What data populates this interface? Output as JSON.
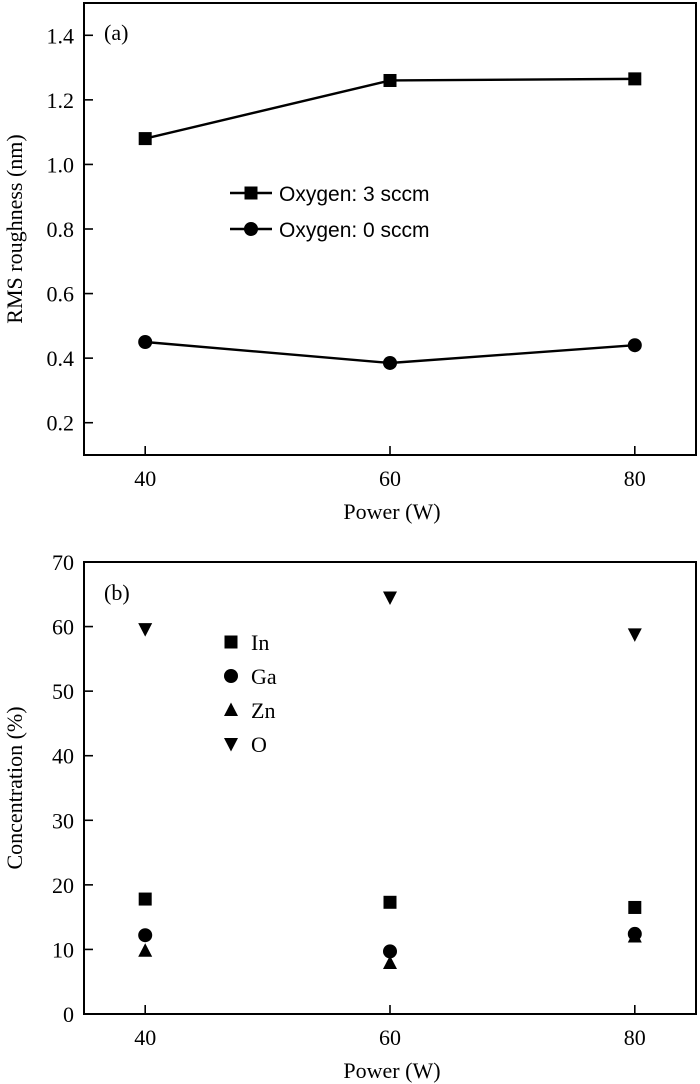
{
  "chart_data": [
    {
      "type": "line",
      "panel_label": "(a)",
      "xlabel": "Power (W)",
      "ylabel": "RMS roughness (nm)",
      "x": [
        40,
        60,
        80
      ],
      "xlim": [
        35,
        85
      ],
      "ylim": [
        0.1,
        1.5
      ],
      "xticks": [
        "40",
        "60",
        "80"
      ],
      "yticks": [
        "0.2",
        "0.4",
        "0.6",
        "0.8",
        "1.0",
        "1.2",
        "1.4"
      ],
      "grid": false,
      "legend_position": "center",
      "series": [
        {
          "name": "Oxygen: 3 sccm",
          "marker": "square",
          "values": [
            1.08,
            1.26,
            1.265
          ]
        },
        {
          "name": "Oxygen: 0 sccm",
          "marker": "circle",
          "values": [
            0.45,
            0.385,
            0.44
          ]
        }
      ]
    },
    {
      "type": "scatter",
      "panel_label": "(b)",
      "xlabel": "Power (W)",
      "ylabel": "Concentration (%)",
      "x": [
        40,
        60,
        80
      ],
      "xlim": [
        35,
        85
      ],
      "ylim": [
        0,
        70
      ],
      "xticks": [
        "40",
        "60",
        "80"
      ],
      "yticks": [
        "0",
        "10",
        "20",
        "30",
        "40",
        "50",
        "60",
        "70"
      ],
      "grid": false,
      "legend_position": "upper-left",
      "series": [
        {
          "name": "In",
          "marker": "square",
          "values": [
            17.8,
            17.3,
            16.5
          ]
        },
        {
          "name": "Ga",
          "marker": "circle",
          "values": [
            12.2,
            9.7,
            12.4
          ]
        },
        {
          "name": "Zn",
          "marker": "triangle-up",
          "values": [
            9.8,
            7.9,
            12.0
          ]
        },
        {
          "name": "O",
          "marker": "triangle-down",
          "values": [
            59.6,
            64.5,
            58.8
          ]
        }
      ]
    }
  ]
}
